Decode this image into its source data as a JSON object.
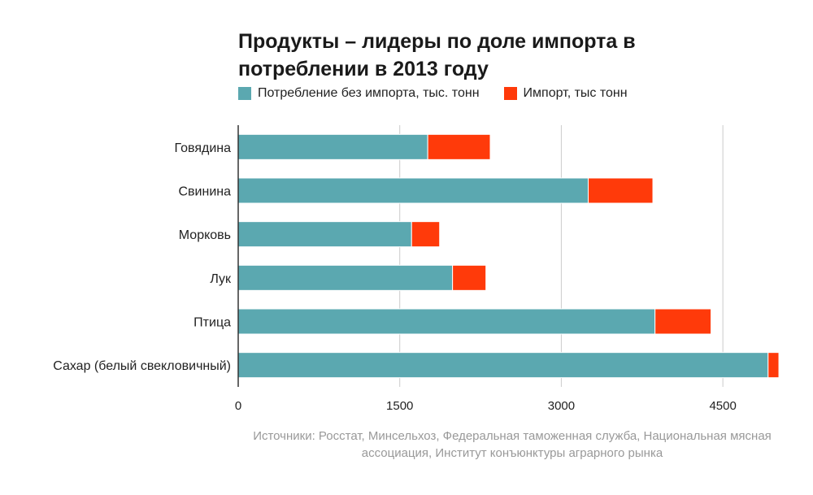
{
  "chart_data": {
    "type": "bar",
    "orientation": "horizontal",
    "stacked": true,
    "title": "Продукты – лидеры по доле импорта в потреблении в 2013 году",
    "categories": [
      "Говядина",
      "Свинина",
      "Морковь",
      "Лук",
      "Птица",
      "Сахар (белый свекловичный)"
    ],
    "series": [
      {
        "name": "Потребление без импорта, тыс. тонн",
        "color": "#5ba8b0",
        "values": [
          1760,
          3250,
          1610,
          1990,
          3870,
          4920
        ]
      },
      {
        "name": "Импорт, тыс тонн",
        "color": "#ff3a0a",
        "values": [
          580,
          600,
          260,
          310,
          520,
          100
        ]
      }
    ],
    "xlim": [
      0,
      5050
    ],
    "xticks": [
      0,
      1500,
      3000,
      4500
    ],
    "grid": "vertical",
    "legend": "top-left",
    "source": "Источники: Росстат, Минсельхоз, Федеральная таможенная служба, Национальная мясная ассоциация, Институт конъюнктуры аграрного рынка"
  }
}
